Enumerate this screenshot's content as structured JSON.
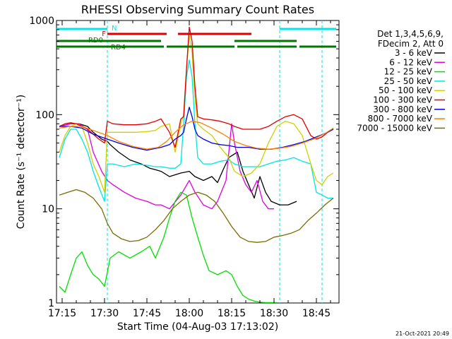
{
  "chart_data": {
    "type": "line",
    "title": "RHESSI Observing Summary Count Rates",
    "xlabel": "Start Time (04-Aug-03 17:13:02)",
    "ylabel": "Count Rate (s⁻¹ detector⁻¹)",
    "yscale": "log",
    "ylim": [
      1,
      1000
    ],
    "xlim_minutes": [
      -2,
      98
    ],
    "x_unit": "minutes after 17:15",
    "x_ticks": [
      {
        "label": "17:15",
        "value": 0
      },
      {
        "label": "17:30",
        "value": 15
      },
      {
        "label": "17:45",
        "value": 30
      },
      {
        "label": "18:00",
        "value": 45
      },
      {
        "label": "18:15",
        "value": 60
      },
      {
        "label": "18:30",
        "value": 75
      },
      {
        "label": "18:45",
        "value": 90
      }
    ],
    "y_ticks": [
      {
        "label": "1",
        "value": 1
      },
      {
        "label": "10",
        "value": 10
      },
      {
        "label": "100",
        "value": 100
      },
      {
        "label": "1000",
        "value": 1000
      }
    ],
    "legend_header": [
      "Det 1,3,4,5,6,9,",
      "FDecim 2, Att 0"
    ],
    "legend_position": "right",
    "timestamp": "21-Oct-2021 20:49",
    "night_boundaries_minutes": [
      16,
      77,
      92
    ],
    "flags": [
      {
        "name": "N",
        "label": "N",
        "color": "#00e5e5",
        "level": "top",
        "intervals": [
          [
            -2,
            16
          ],
          [
            77,
            97
          ]
        ]
      },
      {
        "name": "F",
        "label": "F",
        "color": "#e00000",
        "level": "upper",
        "intervals": [
          [
            16,
            37
          ],
          [
            41,
            67
          ]
        ]
      },
      {
        "name": "RD0",
        "label": "RD0",
        "color": "#007800",
        "level": "middle",
        "intervals": [
          [
            -2,
            16
          ],
          [
            16,
            35
          ],
          [
            61,
            83
          ]
        ]
      },
      {
        "name": "RD4",
        "label": "RD4",
        "color": "#007800",
        "level": "bottom",
        "intervals": [
          [
            -2,
            16
          ],
          [
            16,
            36
          ],
          [
            37,
            61
          ],
          [
            62,
            83
          ],
          [
            84,
            97
          ]
        ]
      }
    ],
    "series": [
      {
        "name": "3 - 6 keV",
        "color": "#000000",
        "x": [
          -1,
          3,
          6,
          9,
          11,
          14,
          16,
          17,
          20,
          24,
          28,
          31,
          33,
          35,
          38,
          42,
          45,
          47,
          50,
          53,
          55,
          57,
          59,
          62,
          64,
          66,
          68,
          70,
          72,
          74,
          77,
          80,
          83
        ],
        "y": [
          75,
          80,
          80,
          75,
          65,
          55,
          52,
          48,
          40,
          33,
          30,
          27,
          26,
          25,
          22,
          24,
          25,
          22,
          20,
          22,
          19,
          26,
          35,
          40,
          25,
          18,
          13,
          22,
          15,
          12,
          11,
          11,
          12
        ]
      },
      {
        "name": "6 - 12 keV",
        "color": "#e000e0",
        "x": [
          -1,
          3,
          6,
          9,
          11,
          14,
          16,
          18,
          22,
          26,
          30,
          33,
          35,
          38,
          42,
          45,
          47,
          50,
          53,
          55,
          58,
          60,
          61,
          63,
          65,
          67,
          69,
          71,
          73,
          75
        ],
        "y": [
          75,
          80,
          80,
          70,
          40,
          25,
          20,
          18,
          15,
          13,
          12,
          11,
          11,
          10,
          14,
          20,
          15,
          11,
          10,
          12,
          20,
          80,
          50,
          25,
          18,
          15,
          20,
          12,
          10,
          10
        ]
      },
      {
        "name": "12 - 25 keV",
        "color": "#00e000",
        "x": [
          -1,
          1,
          3,
          5,
          7,
          9,
          11,
          13,
          15,
          17,
          20,
          24,
          28,
          31,
          33,
          36,
          38,
          40,
          42,
          44,
          46,
          48,
          50,
          52,
          55,
          58,
          60,
          62,
          64,
          66,
          68,
          70,
          72,
          74,
          76
        ],
        "y": [
          1.5,
          1.3,
          2,
          3,
          3.5,
          2.5,
          2,
          1.8,
          1.5,
          3,
          3.5,
          3,
          3.5,
          4,
          3,
          5,
          8,
          12,
          15,
          14,
          8,
          5,
          3.2,
          2.2,
          2,
          2.2,
          2,
          1.5,
          1.2,
          1.1,
          1.05,
          1.02,
          1.01,
          1.01,
          1.01
        ]
      },
      {
        "name": "25 - 50 keV",
        "color": "#00e5e5",
        "x": [
          -1,
          1,
          3,
          5,
          7,
          9,
          11,
          13,
          15,
          16,
          18,
          22,
          26,
          30,
          33,
          35,
          38,
          40,
          42,
          43,
          44,
          45,
          46,
          47,
          48,
          50,
          53,
          56,
          59,
          61,
          64,
          67,
          70,
          73,
          76,
          79,
          82,
          85,
          88,
          90,
          92,
          94,
          96
        ],
        "y": [
          35,
          55,
          70,
          70,
          55,
          40,
          25,
          17,
          12,
          30,
          30,
          28,
          30,
          29,
          28,
          28,
          27,
          27,
          30,
          80,
          250,
          380,
          250,
          80,
          35,
          30,
          30,
          32,
          33,
          30,
          28,
          28,
          28,
          30,
          32,
          33,
          35,
          32,
          30,
          15,
          14,
          13,
          13
        ]
      },
      {
        "name": "50 - 100 keV",
        "color": "#d0d000",
        "x": [
          -1,
          1,
          3,
          5,
          7,
          9,
          11,
          13,
          15,
          16,
          18,
          22,
          26,
          30,
          33,
          35,
          38,
          40,
          42,
          43,
          44,
          45,
          46,
          47,
          48,
          50,
          53,
          56,
          59,
          61,
          64,
          67,
          70,
          73,
          76,
          79,
          82,
          85,
          88,
          90,
          92,
          94,
          96
        ],
        "y": [
          40,
          60,
          75,
          80,
          75,
          50,
          30,
          22,
          15,
          65,
          65,
          65,
          65,
          66,
          68,
          75,
          80,
          40,
          80,
          100,
          300,
          700,
          450,
          150,
          80,
          70,
          60,
          45,
          35,
          25,
          22,
          24,
          30,
          50,
          75,
          85,
          80,
          60,
          30,
          20,
          18,
          22,
          24
        ]
      },
      {
        "name": "100 - 300 keV",
        "color": "#e00000",
        "x": [
          -1,
          1,
          3,
          5,
          7,
          9,
          11,
          13,
          15,
          16,
          18,
          22,
          26,
          30,
          33,
          35,
          38,
          40,
          42,
          43,
          44,
          45,
          46,
          47,
          48,
          50,
          53,
          56,
          59,
          61,
          64,
          67,
          70,
          73,
          76,
          79,
          82,
          85,
          88,
          90,
          92,
          94,
          96
        ],
        "y": [
          75,
          80,
          82,
          80,
          75,
          70,
          62,
          55,
          50,
          85,
          80,
          78,
          78,
          80,
          85,
          90,
          65,
          45,
          90,
          95,
          300,
          850,
          600,
          200,
          95,
          90,
          88,
          85,
          80,
          75,
          70,
          70,
          70,
          75,
          85,
          95,
          100,
          90,
          60,
          55,
          58,
          65,
          72
        ]
      },
      {
        "name": "300 - 800 keV",
        "color": "#0000e0",
        "x": [
          -1,
          3,
          7,
          11,
          16,
          20,
          25,
          30,
          35,
          38,
          40,
          42,
          43,
          44,
          45,
          46,
          47,
          48,
          50,
          53,
          56,
          59,
          62,
          66,
          70,
          74,
          78,
          82,
          86,
          90,
          94,
          96
        ],
        "y": [
          75,
          75,
          72,
          62,
          55,
          50,
          45,
          42,
          45,
          48,
          55,
          60,
          65,
          90,
          120,
          95,
          70,
          60,
          55,
          50,
          48,
          47,
          45,
          45,
          43,
          43,
          45,
          48,
          52,
          58,
          65,
          70
        ]
      },
      {
        "name": "800 - 7000 keV",
        "color": "#ff8000",
        "x": [
          -1,
          3,
          7,
          11,
          16,
          20,
          25,
          30,
          34,
          37,
          40,
          43,
          46,
          49,
          53,
          57,
          61,
          65,
          69,
          73,
          77,
          81,
          85,
          89,
          93,
          96
        ],
        "y": [
          72,
          75,
          75,
          68,
          60,
          52,
          46,
          43,
          45,
          52,
          65,
          78,
          85,
          82,
          72,
          62,
          52,
          47,
          44,
          43,
          44,
          46,
          50,
          55,
          63,
          72
        ]
      },
      {
        "name": "7000 - 15000 keV",
        "color": "#7a6a00",
        "x": [
          -1,
          2,
          5,
          8,
          11,
          14,
          16,
          18,
          21,
          24,
          27,
          30,
          33,
          36,
          39,
          42,
          45,
          48,
          51,
          54,
          57,
          60,
          63,
          66,
          69,
          72,
          75,
          78,
          81,
          84,
          87,
          90,
          93,
          96
        ],
        "y": [
          14,
          15,
          16,
          15,
          13,
          10,
          7,
          5.5,
          4.8,
          4.5,
          4.6,
          5,
          6,
          7.5,
          10,
          12,
          14,
          15,
          14,
          12,
          9,
          6.5,
          5,
          4.5,
          4.4,
          4.5,
          5,
          5.2,
          5.5,
          6,
          7.5,
          9,
          11,
          13
        ]
      }
    ]
  }
}
